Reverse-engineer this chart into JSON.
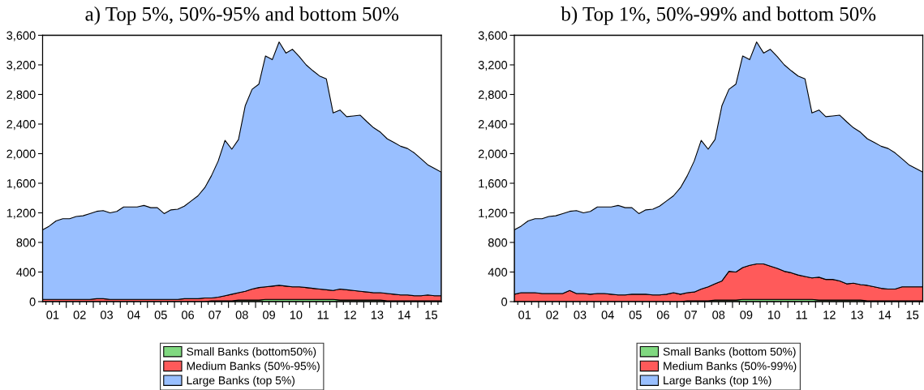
{
  "chart_data": [
    {
      "type": "area",
      "stacked": true,
      "title": "a) Top 5%, 50%-95% and bottom 50%",
      "legend": "bottom",
      "x": [
        "2001-02-15",
        "2001-05-15",
        "2001-08-15",
        "2001-11-15",
        "2002-02-15",
        "2002-05-15",
        "2002-08-15",
        "2002-11-15",
        "2003-02-15",
        "2003-05-15",
        "2003-08-15",
        "2003-11-15",
        "2004-02-15",
        "2004-05-15",
        "2004-08-15",
        "2004-11-15",
        "2005-02-15",
        "2005-05-15",
        "2005-08-15",
        "2005-11-15",
        "2006-02-15",
        "2006-05-15",
        "2006-08-15",
        "2006-11-15",
        "2007-02-15",
        "2007-05-15",
        "2007-08-15",
        "2007-11-15",
        "2008-02-15",
        "2008-05-15",
        "2008-08-15",
        "2008-11-15",
        "2009-02-15",
        "2009-05-15",
        "2009-08-15",
        "2009-11-15",
        "2010-02-15",
        "2010-05-15",
        "2010-08-15",
        "2010-11-15",
        "2011-02-15",
        "2011-05-15",
        "2011-08-15",
        "2011-11-15",
        "2012-02-15",
        "2012-05-15",
        "2012-08-15",
        "2012-11-15",
        "2013-02-15",
        "2013-05-15",
        "2013-08-15",
        "2013-11-15",
        "2014-02-15",
        "2014-05-15",
        "2014-08-15",
        "2014-11-15",
        "2015-02-15",
        "2015-05-15",
        "2015-08-15",
        "2015-11-15"
      ],
      "xlim": [
        "2001-02-15",
        "2015-11-15"
      ],
      "xticks": [
        {
          "value": "2001-04-01",
          "label": null
        },
        {
          "value": "2001-07-01",
          "label": "01"
        },
        {
          "value": "2001-10-01",
          "label": null
        },
        {
          "value": "2002-01-01",
          "label": null
        },
        {
          "value": "2002-04-01",
          "label": null
        },
        {
          "value": "2002-07-01",
          "label": "02"
        },
        {
          "value": "2002-10-01",
          "label": null
        },
        {
          "value": "2003-01-01",
          "label": null
        },
        {
          "value": "2003-04-01",
          "label": null
        },
        {
          "value": "2003-07-01",
          "label": "03"
        },
        {
          "value": "2003-10-01",
          "label": null
        },
        {
          "value": "2004-01-01",
          "label": null
        },
        {
          "value": "2004-04-01",
          "label": null
        },
        {
          "value": "2004-07-01",
          "label": "04"
        },
        {
          "value": "2004-10-01",
          "label": null
        },
        {
          "value": "2005-01-01",
          "label": null
        },
        {
          "value": "2005-04-01",
          "label": null
        },
        {
          "value": "2005-07-01",
          "label": "05"
        },
        {
          "value": "2005-10-01",
          "label": null
        },
        {
          "value": "2006-01-01",
          "label": null
        },
        {
          "value": "2006-04-01",
          "label": null
        },
        {
          "value": "2006-07-01",
          "label": "06"
        },
        {
          "value": "2006-10-01",
          "label": null
        },
        {
          "value": "2007-01-01",
          "label": null
        },
        {
          "value": "2007-04-01",
          "label": null
        },
        {
          "value": "2007-07-01",
          "label": "07"
        },
        {
          "value": "2007-10-01",
          "label": null
        },
        {
          "value": "2008-01-01",
          "label": null
        },
        {
          "value": "2008-04-01",
          "label": null
        },
        {
          "value": "2008-07-01",
          "label": "08"
        },
        {
          "value": "2008-10-01",
          "label": null
        },
        {
          "value": "2009-01-01",
          "label": null
        },
        {
          "value": "2009-04-01",
          "label": null
        },
        {
          "value": "2009-07-01",
          "label": "09"
        },
        {
          "value": "2009-10-01",
          "label": null
        },
        {
          "value": "2010-01-01",
          "label": null
        },
        {
          "value": "2010-04-01",
          "label": null
        },
        {
          "value": "2010-07-01",
          "label": "10"
        },
        {
          "value": "2010-10-01",
          "label": null
        },
        {
          "value": "2011-01-01",
          "label": null
        },
        {
          "value": "2011-04-01",
          "label": null
        },
        {
          "value": "2011-07-01",
          "label": "11"
        },
        {
          "value": "2011-10-01",
          "label": null
        },
        {
          "value": "2012-01-01",
          "label": null
        },
        {
          "value": "2012-04-01",
          "label": null
        },
        {
          "value": "2012-07-01",
          "label": "12"
        },
        {
          "value": "2012-10-01",
          "label": null
        },
        {
          "value": "2013-01-01",
          "label": null
        },
        {
          "value": "2013-04-01",
          "label": null
        },
        {
          "value": "2013-07-01",
          "label": "13"
        },
        {
          "value": "2013-10-01",
          "label": null
        },
        {
          "value": "2014-01-01",
          "label": null
        },
        {
          "value": "2014-04-01",
          "label": null
        },
        {
          "value": "2014-07-01",
          "label": "14"
        },
        {
          "value": "2014-10-01",
          "label": null
        },
        {
          "value": "2015-01-01",
          "label": null
        },
        {
          "value": "2015-04-01",
          "label": null
        },
        {
          "value": "2015-07-01",
          "label": "15"
        },
        {
          "value": "2015-10-01",
          "label": null
        }
      ],
      "ylim": [
        0,
        3600
      ],
      "yticks": [
        0,
        400,
        800,
        {
          "value": 1200,
          "label": "1,200"
        },
        {
          "value": 1600,
          "label": "1,600"
        },
        {
          "value": 2000,
          "label": "2,000"
        },
        {
          "value": 2400,
          "label": "2,400"
        },
        {
          "value": 2800,
          "label": "2,800"
        },
        {
          "value": 3200,
          "label": "3,200"
        },
        {
          "value": 3600,
          "label": "3,600"
        }
      ],
      "series": [
        {
          "name": "Small Banks (bottom50%)",
          "color": "#80d880",
          "values": [
            0,
            0,
            0,
            0,
            0,
            0,
            0,
            0,
            0,
            0,
            0,
            0,
            0,
            0,
            0,
            0,
            0,
            0,
            0,
            0,
            0,
            0,
            0,
            0,
            0,
            10,
            10,
            10,
            10,
            20,
            20,
            20,
            20,
            30,
            30,
            30,
            30,
            30,
            30,
            30,
            30,
            30,
            30,
            30,
            20,
            20,
            20,
            20,
            20,
            20,
            20,
            10,
            10,
            10,
            10,
            10,
            10,
            10,
            10,
            10
          ]
        },
        {
          "name": "Medium Banks (50%-95%)",
          "color": "#ff5a5a",
          "values": [
            30,
            30,
            30,
            30,
            30,
            30,
            30,
            30,
            40,
            40,
            30,
            30,
            30,
            30,
            30,
            30,
            30,
            30,
            30,
            30,
            30,
            40,
            40,
            40,
            50,
            40,
            50,
            70,
            90,
            100,
            120,
            150,
            170,
            170,
            180,
            190,
            180,
            170,
            170,
            160,
            150,
            140,
            130,
            120,
            150,
            140,
            130,
            120,
            110,
            100,
            100,
            100,
            90,
            80,
            80,
            70,
            70,
            80,
            70,
            70
          ]
        },
        {
          "name": "Large Banks (top 5%)",
          "color": "#99bfff",
          "values": [
            940,
            990,
            1060,
            1090,
            1090,
            1120,
            1130,
            1160,
            1180,
            1190,
            1170,
            1190,
            1250,
            1250,
            1250,
            1270,
            1240,
            1240,
            1160,
            1210,
            1220,
            1250,
            1320,
            1390,
            1490,
            1650,
            1840,
            2100,
            1960,
            2070,
            2510,
            2700,
            2750,
            3120,
            3060,
            3290,
            3150,
            3210,
            3110,
            3010,
            2940,
            2880,
            2850,
            2400,
            2420,
            2340,
            2360,
            2380,
            2300,
            2230,
            2170,
            2090,
            2050,
            2010,
            1980,
            1930,
            1850,
            1760,
            1720,
            1670
          ]
        }
      ]
    },
    {
      "type": "area",
      "stacked": true,
      "title": "b) Top 1%, 50%-99% and bottom 50%",
      "legend": "bottom",
      "x": [
        "2001-02-15",
        "2001-05-15",
        "2001-08-15",
        "2001-11-15",
        "2002-02-15",
        "2002-05-15",
        "2002-08-15",
        "2002-11-15",
        "2003-02-15",
        "2003-05-15",
        "2003-08-15",
        "2003-11-15",
        "2004-02-15",
        "2004-05-15",
        "2004-08-15",
        "2004-11-15",
        "2005-02-15",
        "2005-05-15",
        "2005-08-15",
        "2005-11-15",
        "2006-02-15",
        "2006-05-15",
        "2006-08-15",
        "2006-11-15",
        "2007-02-15",
        "2007-05-15",
        "2007-08-15",
        "2007-11-15",
        "2008-02-15",
        "2008-05-15",
        "2008-08-15",
        "2008-11-15",
        "2009-02-15",
        "2009-05-15",
        "2009-08-15",
        "2009-11-15",
        "2010-02-15",
        "2010-05-15",
        "2010-08-15",
        "2010-11-15",
        "2011-02-15",
        "2011-05-15",
        "2011-08-15",
        "2011-11-15",
        "2012-02-15",
        "2012-05-15",
        "2012-08-15",
        "2012-11-15",
        "2013-02-15",
        "2013-05-15",
        "2013-08-15",
        "2013-11-15",
        "2014-02-15",
        "2014-05-15",
        "2014-08-15",
        "2014-11-15",
        "2015-02-15",
        "2015-05-15",
        "2015-08-15",
        "2015-11-15"
      ],
      "xlim": [
        "2001-02-15",
        "2015-11-15"
      ],
      "xticks": [
        {
          "value": "2001-04-01",
          "label": null
        },
        {
          "value": "2001-07-01",
          "label": "01"
        },
        {
          "value": "2001-10-01",
          "label": null
        },
        {
          "value": "2002-01-01",
          "label": null
        },
        {
          "value": "2002-04-01",
          "label": null
        },
        {
          "value": "2002-07-01",
          "label": "02"
        },
        {
          "value": "2002-10-01",
          "label": null
        },
        {
          "value": "2003-01-01",
          "label": null
        },
        {
          "value": "2003-04-01",
          "label": null
        },
        {
          "value": "2003-07-01",
          "label": "03"
        },
        {
          "value": "2003-10-01",
          "label": null
        },
        {
          "value": "2004-01-01",
          "label": null
        },
        {
          "value": "2004-04-01",
          "label": null
        },
        {
          "value": "2004-07-01",
          "label": "04"
        },
        {
          "value": "2004-10-01",
          "label": null
        },
        {
          "value": "2005-01-01",
          "label": null
        },
        {
          "value": "2005-04-01",
          "label": null
        },
        {
          "value": "2005-07-01",
          "label": "05"
        },
        {
          "value": "2005-10-01",
          "label": null
        },
        {
          "value": "2006-01-01",
          "label": null
        },
        {
          "value": "2006-04-01",
          "label": null
        },
        {
          "value": "2006-07-01",
          "label": "06"
        },
        {
          "value": "2006-10-01",
          "label": null
        },
        {
          "value": "2007-01-01",
          "label": null
        },
        {
          "value": "2007-04-01",
          "label": null
        },
        {
          "value": "2007-07-01",
          "label": "07"
        },
        {
          "value": "2007-10-01",
          "label": null
        },
        {
          "value": "2008-01-01",
          "label": null
        },
        {
          "value": "2008-04-01",
          "label": null
        },
        {
          "value": "2008-07-01",
          "label": "08"
        },
        {
          "value": "2008-10-01",
          "label": null
        },
        {
          "value": "2009-01-01",
          "label": null
        },
        {
          "value": "2009-04-01",
          "label": null
        },
        {
          "value": "2009-07-01",
          "label": "09"
        },
        {
          "value": "2009-10-01",
          "label": null
        },
        {
          "value": "2010-01-01",
          "label": null
        },
        {
          "value": "2010-04-01",
          "label": null
        },
        {
          "value": "2010-07-01",
          "label": "10"
        },
        {
          "value": "2010-10-01",
          "label": null
        },
        {
          "value": "2011-01-01",
          "label": null
        },
        {
          "value": "2011-04-01",
          "label": null
        },
        {
          "value": "2011-07-01",
          "label": "11"
        },
        {
          "value": "2011-10-01",
          "label": null
        },
        {
          "value": "2012-01-01",
          "label": null
        },
        {
          "value": "2012-04-01",
          "label": null
        },
        {
          "value": "2012-07-01",
          "label": "12"
        },
        {
          "value": "2012-10-01",
          "label": null
        },
        {
          "value": "2013-01-01",
          "label": null
        },
        {
          "value": "2013-04-01",
          "label": null
        },
        {
          "value": "2013-07-01",
          "label": "13"
        },
        {
          "value": "2013-10-01",
          "label": null
        },
        {
          "value": "2014-01-01",
          "label": null
        },
        {
          "value": "2014-04-01",
          "label": null
        },
        {
          "value": "2014-07-01",
          "label": "14"
        },
        {
          "value": "2014-10-01",
          "label": null
        },
        {
          "value": "2015-01-01",
          "label": null
        },
        {
          "value": "2015-04-01",
          "label": null
        },
        {
          "value": "2015-07-01",
          "label": "15"
        },
        {
          "value": "2015-10-01",
          "label": null
        }
      ],
      "ylim": [
        0,
        3600
      ],
      "yticks": [
        0,
        400,
        800,
        {
          "value": 1200,
          "label": "1,200"
        },
        {
          "value": 1600,
          "label": "1,600"
        },
        {
          "value": 2000,
          "label": "2,000"
        },
        {
          "value": 2400,
          "label": "2,400"
        },
        {
          "value": 2800,
          "label": "2,800"
        },
        {
          "value": 3200,
          "label": "3,200"
        },
        {
          "value": 3600,
          "label": "3,600"
        }
      ],
      "series": [
        {
          "name": "Small Banks (bottom 50%)",
          "color": "#80d880",
          "values": [
            0,
            0,
            0,
            0,
            0,
            0,
            0,
            0,
            0,
            0,
            0,
            0,
            0,
            0,
            0,
            0,
            0,
            0,
            0,
            0,
            0,
            0,
            0,
            0,
            0,
            10,
            10,
            10,
            10,
            20,
            20,
            20,
            20,
            30,
            30,
            30,
            30,
            30,
            30,
            30,
            30,
            30,
            30,
            30,
            20,
            20,
            20,
            20,
            20,
            20,
            20,
            10,
            10,
            10,
            10,
            10,
            10,
            10,
            10,
            10
          ]
        },
        {
          "name": "Medium Banks (50%-99%)",
          "color": "#ff5a5a",
          "values": [
            100,
            120,
            120,
            120,
            110,
            110,
            110,
            110,
            150,
            110,
            110,
            100,
            110,
            110,
            100,
            90,
            90,
            100,
            100,
            100,
            90,
            90,
            100,
            120,
            100,
            110,
            120,
            160,
            190,
            220,
            260,
            390,
            380,
            430,
            460,
            480,
            480,
            450,
            420,
            380,
            360,
            330,
            310,
            290,
            310,
            280,
            280,
            260,
            220,
            230,
            210,
            210,
            190,
            170,
            160,
            160,
            190,
            190,
            190,
            190
          ]
        },
        {
          "name": "Large Banks (top 1%)",
          "color": "#99bfff",
          "values": [
            870,
            900,
            970,
            1000,
            1010,
            1040,
            1050,
            1080,
            1070,
            1120,
            1090,
            1120,
            1170,
            1170,
            1180,
            1210,
            1180,
            1170,
            1090,
            1140,
            1160,
            1200,
            1260,
            1310,
            1440,
            1580,
            1770,
            2010,
            1860,
            1950,
            2370,
            2460,
            2540,
            2860,
            2780,
            3000,
            2850,
            2930,
            2860,
            2790,
            2730,
            2690,
            2670,
            2230,
            2260,
            2200,
            2210,
            2240,
            2190,
            2100,
            2060,
            1980,
            1950,
            1920,
            1900,
            1840,
            1730,
            1650,
            1600,
            1550
          ]
        }
      ]
    }
  ]
}
